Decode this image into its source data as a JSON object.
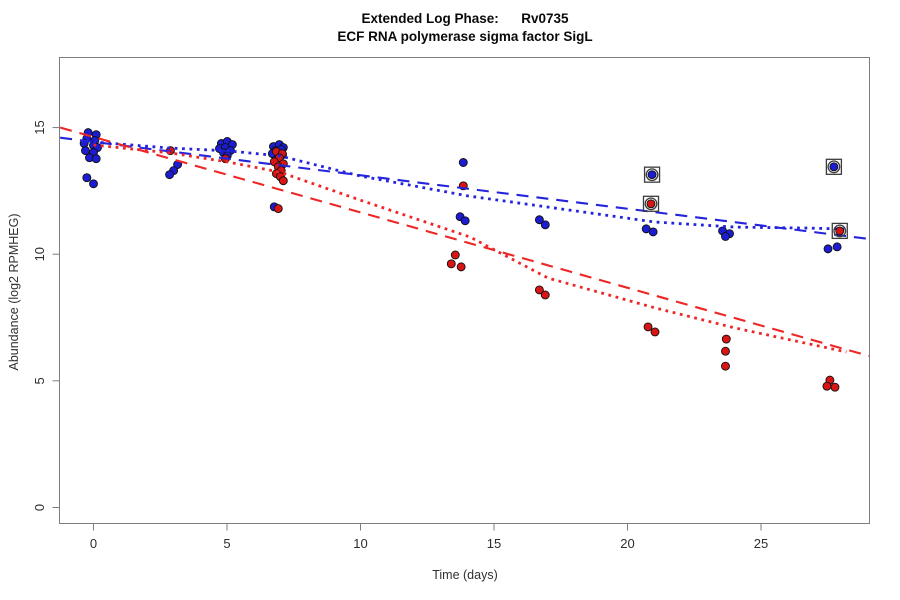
{
  "header": {
    "title": "Extended Log Phase:      Rv0735",
    "subtitle": "ECF RNA polymerase sigma factor SigL"
  },
  "chart_data": {
    "type": "scatter",
    "title": "Extended Log Phase:      Rv0735",
    "subtitle": "ECF RNA polymerase sigma factor SigL",
    "xlabel": "Time (days)",
    "ylabel": "Abundance (log2 RPMHEG)",
    "x_ticks": [
      0,
      5,
      10,
      15,
      20,
      25
    ],
    "y_ticks": [
      0,
      5,
      10,
      15
    ],
    "xlim": [
      -1.25,
      29.05
    ],
    "ylim": [
      -0.65,
      17.75
    ],
    "grid": false,
    "legend": "none",
    "series": [
      {
        "name": "blue",
        "point_color": "#1c1cd2",
        "line_color": "#2424dd",
        "points": [
          [
            -0.2,
            14.8
          ],
          [
            0.1,
            14.72
          ],
          [
            -0.25,
            14.56
          ],
          [
            0.05,
            14.49
          ],
          [
            -0.35,
            14.37
          ],
          [
            0.0,
            14.29
          ],
          [
            0.15,
            14.21
          ],
          [
            -0.3,
            14.09
          ],
          [
            0.0,
            14.01
          ],
          [
            -0.15,
            13.81
          ],
          [
            0.1,
            13.77
          ],
          [
            -0.25,
            13.02
          ],
          [
            0.0,
            12.78
          ],
          [
            3.15,
            13.54
          ],
          [
            3.0,
            13.3
          ],
          [
            2.85,
            13.14
          ],
          [
            4.79,
            14.37
          ],
          [
            5.01,
            14.45
          ],
          [
            5.2,
            14.33
          ],
          [
            4.72,
            14.17
          ],
          [
            4.94,
            14.21
          ],
          [
            5.13,
            14.09
          ],
          [
            4.87,
            14.01
          ],
          [
            5.01,
            13.89
          ],
          [
            6.74,
            14.25
          ],
          [
            6.96,
            14.33
          ],
          [
            7.11,
            14.21
          ],
          [
            6.81,
            14.09
          ],
          [
            7.03,
            14.13
          ],
          [
            6.7,
            13.97
          ],
          [
            7.08,
            13.93
          ],
          [
            6.77,
            11.87
          ],
          [
            13.85,
            13.62
          ],
          [
            13.73,
            11.48
          ],
          [
            13.92,
            11.32
          ],
          [
            16.7,
            11.36
          ],
          [
            16.92,
            11.16
          ],
          [
            20.7,
            11.0
          ],
          [
            20.96,
            10.88
          ],
          [
            23.56,
            10.92
          ],
          [
            23.82,
            10.81
          ],
          [
            23.67,
            10.7
          ],
          [
            27.51,
            10.21
          ],
          [
            27.85,
            10.29
          ]
        ],
        "outliers": [
          [
            20.92,
            13.14
          ],
          [
            27.73,
            13.45
          ]
        ],
        "lm": {
          "x": [
            -1.25,
            29.05
          ],
          "y": [
            14.6,
            10.6
          ]
        },
        "lowess": [
          [
            0,
            14.43
          ],
          [
            2.87,
            14.19
          ],
          [
            5.04,
            14.08
          ],
          [
            6.98,
            13.88
          ],
          [
            9.98,
            13.09
          ],
          [
            14.03,
            12.3
          ],
          [
            17.02,
            11.86
          ],
          [
            21.03,
            11.27
          ],
          [
            24.02,
            11.07
          ],
          [
            26.83,
            11.03
          ],
          [
            28.2,
            10.99
          ]
        ]
      },
      {
        "name": "red",
        "point_color": "#d81414",
        "line_color": "#ee2626",
        "points": [
          [
            2.88,
            14.09
          ],
          [
            4.94,
            13.77
          ],
          [
            6.85,
            14.05
          ],
          [
            7.07,
            13.97
          ],
          [
            6.96,
            13.81
          ],
          [
            6.77,
            13.65
          ],
          [
            7.11,
            13.57
          ],
          [
            6.92,
            13.45
          ],
          [
            7.03,
            13.3
          ],
          [
            6.85,
            13.18
          ],
          [
            7.0,
            13.06
          ],
          [
            7.11,
            12.9
          ],
          [
            6.92,
            11.8
          ],
          [
            13.85,
            12.7
          ],
          [
            13.55,
            9.97
          ],
          [
            13.4,
            9.62
          ],
          [
            13.77,
            9.5
          ],
          [
            16.7,
            8.59
          ],
          [
            16.92,
            8.39
          ],
          [
            20.77,
            7.13
          ],
          [
            21.03,
            6.93
          ],
          [
            23.7,
            6.65
          ],
          [
            23.67,
            6.17
          ],
          [
            23.67,
            5.58
          ],
          [
            27.58,
            5.03
          ],
          [
            27.47,
            4.79
          ],
          [
            27.77,
            4.75
          ]
        ],
        "outliers": [
          [
            20.88,
            11.99
          ],
          [
            27.95,
            10.92
          ]
        ],
        "lm": {
          "x": [
            -1.25,
            29.05
          ],
          "y": [
            15.0,
            5.98
          ]
        },
        "lowess": [
          [
            0,
            14.31
          ],
          [
            2.87,
            14.0
          ],
          [
            5.04,
            13.64
          ],
          [
            6.98,
            13.24
          ],
          [
            9.98,
            12.14
          ],
          [
            14.1,
            10.68
          ],
          [
            17.02,
            9.06
          ],
          [
            21.03,
            7.88
          ],
          [
            24.02,
            7.09
          ],
          [
            28.2,
            6.14
          ]
        ]
      }
    ],
    "colors": {
      "box": "#7d7d7d",
      "tick": "#7d7d7d",
      "tick_label": "#2e2e2e",
      "outlier_marker": "#3c3c3c"
    }
  }
}
